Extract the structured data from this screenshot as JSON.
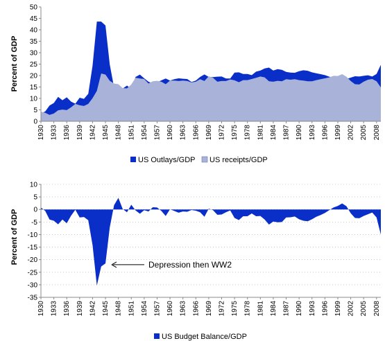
{
  "colors": {
    "outlays": "#0a2ec8",
    "receipts": "#a9b2d8",
    "balance": "#0a2ec8",
    "axis": "#888888",
    "grid": "#aaaaaa"
  },
  "chart_data": [
    {
      "type": "area",
      "xlabel": "",
      "ylabel": "Percent of GDP",
      "ylim": [
        0,
        50
      ],
      "yticks": [
        0,
        5,
        10,
        15,
        20,
        25,
        30,
        35,
        40,
        45,
        50
      ],
      "xticks": [
        "1930",
        "1933",
        "1936",
        "1939",
        "1942",
        "1945",
        "1948",
        "1951",
        "1954",
        "1957",
        "1960",
        "1963",
        "1966",
        "1969",
        "1972",
        "1975",
        "1978",
        "1981",
        "1984",
        "1987",
        "1990",
        "1993",
        "1996",
        "1999",
        "2002",
        "2005",
        "2008"
      ],
      "legend_position": "bottom",
      "x": [
        1930,
        1931,
        1932,
        1933,
        1934,
        1935,
        1936,
        1937,
        1938,
        1939,
        1940,
        1941,
        1942,
        1943,
        1944,
        1945,
        1946,
        1947,
        1948,
        1949,
        1950,
        1951,
        1952,
        1953,
        1954,
        1955,
        1956,
        1957,
        1958,
        1959,
        1960,
        1961,
        1962,
        1963,
        1964,
        1965,
        1966,
        1967,
        1968,
        1969,
        1970,
        1971,
        1972,
        1973,
        1974,
        1975,
        1976,
        1977,
        1978,
        1979,
        1980,
        1981,
        1982,
        1983,
        1984,
        1985,
        1986,
        1987,
        1988,
        1989,
        1990,
        1991,
        1992,
        1993,
        1994,
        1995,
        1996,
        1997,
        1998,
        1999,
        2000,
        2001,
        2002,
        2003,
        2004,
        2005,
        2006,
        2007,
        2008,
        2009
      ],
      "series": [
        {
          "name": "US Outlays/GDP",
          "values": [
            3.4,
            4.3,
            6.9,
            8.0,
            10.7,
            9.2,
            10.5,
            8.6,
            7.7,
            10.3,
            9.8,
            12.0,
            24.3,
            43.6,
            43.6,
            41.9,
            24.8,
            14.8,
            11.6,
            14.3,
            15.6,
            14.2,
            19.4,
            20.4,
            18.8,
            17.3,
            16.5,
            17.0,
            17.9,
            18.7,
            17.8,
            18.4,
            18.8,
            18.6,
            18.5,
            17.2,
            17.8,
            19.4,
            20.5,
            19.4,
            19.3,
            19.5,
            19.6,
            18.7,
            18.7,
            21.3,
            21.4,
            20.7,
            20.7,
            20.2,
            21.7,
            22.2,
            23.1,
            23.5,
            22.2,
            22.8,
            22.5,
            21.6,
            21.3,
            21.2,
            21.9,
            22.3,
            22.1,
            21.4,
            21.0,
            20.6,
            20.2,
            19.5,
            19.1,
            18.5,
            18.4,
            18.5,
            19.1,
            19.7,
            19.6,
            19.9,
            20.1,
            19.6,
            20.7,
            24.7
          ]
        },
        {
          "name": "US receipts/GDP",
          "values": [
            4.2,
            3.7,
            2.8,
            3.4,
            4.8,
            5.1,
            4.9,
            6.1,
            7.6,
            7.0,
            6.7,
            7.6,
            10.1,
            13.3,
            20.9,
            20.4,
            17.7,
            16.5,
            16.2,
            14.5,
            14.4,
            16.1,
            19.0,
            18.7,
            18.5,
            16.5,
            17.5,
            17.7,
            17.3,
            16.2,
            17.8,
            17.8,
            17.6,
            17.8,
            17.6,
            17.0,
            17.3,
            18.4,
            17.6,
            19.7,
            19.0,
            17.3,
            17.6,
            17.6,
            18.3,
            17.9,
            17.1,
            18.0,
            18.0,
            18.5,
            19.0,
            19.6,
            19.2,
            17.5,
            17.3,
            17.7,
            17.5,
            18.4,
            18.2,
            18.4,
            18.0,
            17.8,
            17.5,
            17.5,
            18.0,
            18.4,
            18.8,
            19.2,
            19.9,
            19.8,
            20.6,
            19.5,
            17.6,
            16.2,
            16.1,
            17.3,
            18.2,
            18.5,
            17.5,
            14.8
          ]
        }
      ]
    },
    {
      "type": "area",
      "xlabel": "",
      "ylabel": "Percent of GDP",
      "ylim": [
        -35,
        10
      ],
      "yticks": [
        10,
        5,
        0,
        -5,
        -10,
        -15,
        -20,
        -25,
        -30,
        -35
      ],
      "xticks": [
        "1930",
        "1933",
        "1936",
        "1939",
        "1942",
        "1945",
        "1948",
        "1951",
        "1954",
        "1957",
        "1960",
        "1963",
        "1966",
        "1969",
        "1972",
        "1975",
        "1978",
        "1981",
        "1984",
        "1987",
        "1990",
        "1993",
        "1996",
        "1999",
        "2002",
        "2005",
        "2008"
      ],
      "legend_position": "bottom",
      "annotations": [
        "Depression then WW2"
      ],
      "x": [
        1930,
        1931,
        1932,
        1933,
        1934,
        1935,
        1936,
        1937,
        1938,
        1939,
        1940,
        1941,
        1942,
        1943,
        1944,
        1945,
        1946,
        1947,
        1948,
        1949,
        1950,
        1951,
        1952,
        1953,
        1954,
        1955,
        1956,
        1957,
        1958,
        1959,
        1960,
        1961,
        1962,
        1963,
        1964,
        1965,
        1966,
        1967,
        1968,
        1969,
        1970,
        1971,
        1972,
        1973,
        1974,
        1975,
        1976,
        1977,
        1978,
        1979,
        1980,
        1981,
        1982,
        1983,
        1984,
        1985,
        1986,
        1987,
        1988,
        1989,
        1990,
        1991,
        1992,
        1993,
        1994,
        1995,
        1996,
        1997,
        1998,
        1999,
        2000,
        2001,
        2002,
        2003,
        2004,
        2005,
        2006,
        2007,
        2008,
        2009
      ],
      "series": [
        {
          "name": "US Budget Balance/GDP",
          "values": [
            0.8,
            -0.6,
            -4.0,
            -4.5,
            -5.9,
            -4.0,
            -5.5,
            -2.5,
            -0.1,
            -3.2,
            -3.0,
            -4.3,
            -14.2,
            -30.3,
            -22.7,
            -21.5,
            -7.1,
            1.7,
            4.6,
            0.2,
            -1.1,
            1.9,
            -0.4,
            -1.7,
            -0.3,
            -0.8,
            0.9,
            0.8,
            -0.6,
            -2.6,
            0.1,
            -0.6,
            -1.3,
            -0.8,
            -0.9,
            -0.2,
            -0.5,
            -1.1,
            -2.9,
            0.3,
            -0.3,
            -2.1,
            -2.0,
            -1.1,
            -0.4,
            -3.4,
            -4.2,
            -2.7,
            -2.7,
            -1.6,
            -2.7,
            -2.6,
            -4.0,
            -6.0,
            -4.8,
            -5.1,
            -5.0,
            -3.2,
            -3.1,
            -2.8,
            -3.9,
            -4.5,
            -4.7,
            -3.9,
            -2.9,
            -2.2,
            -1.4,
            -0.3,
            0.8,
            1.4,
            2.4,
            1.3,
            -1.5,
            -3.4,
            -3.5,
            -2.6,
            -1.9,
            -1.2,
            -3.2,
            -10.0
          ]
        }
      ]
    }
  ]
}
